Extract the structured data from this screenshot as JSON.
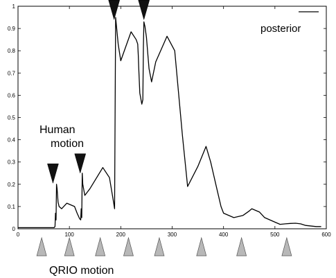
{
  "chart_data": {
    "type": "line",
    "title": "",
    "xlabel": "",
    "ylabel": "",
    "xlim": [
      0,
      600
    ],
    "ylim": [
      0,
      1
    ],
    "x_ticks": [
      "0",
      "100",
      "200",
      "300",
      "400",
      "500",
      "600"
    ],
    "y_ticks": [
      "0",
      "0.1",
      "0.2",
      "0.3",
      "0.4",
      "0.5",
      "0.6",
      "0.7",
      "0.8",
      "0.9",
      "1"
    ],
    "grid": false,
    "legend_position": "top-right",
    "series": [
      {
        "name": "posterior",
        "color": "#000000",
        "x": [
          0,
          40,
          70,
          72,
          73,
          74,
          75,
          76,
          78,
          80,
          85,
          95,
          110,
          115,
          120,
          122,
          123,
          124,
          125,
          126,
          130,
          140,
          165,
          178,
          186,
          188,
          190,
          195,
          200,
          220,
          230,
          233,
          234,
          235,
          237,
          241,
          243,
          244,
          245,
          246,
          247,
          250,
          255,
          260,
          268,
          290,
          305,
          320,
          330,
          350,
          366,
          375,
          385,
          395,
          400,
          420,
          438,
          450,
          455,
          470,
          480,
          500,
          510,
          520,
          530,
          540,
          550,
          560,
          580,
          590
        ],
        "y": [
          0.005,
          0.005,
          0.005,
          0.01,
          0.07,
          0.04,
          0.2,
          0.18,
          0.12,
          0.1,
          0.09,
          0.115,
          0.1,
          0.07,
          0.045,
          0.04,
          0.09,
          0.05,
          0.25,
          0.2,
          0.15,
          0.18,
          0.275,
          0.23,
          0.12,
          0.09,
          0.95,
          0.83,
          0.755,
          0.885,
          0.85,
          0.83,
          0.78,
          0.72,
          0.61,
          0.56,
          0.58,
          0.82,
          0.93,
          0.92,
          0.91,
          0.86,
          0.72,
          0.66,
          0.75,
          0.865,
          0.8,
          0.42,
          0.19,
          0.28,
          0.37,
          0.3,
          0.2,
          0.1,
          0.07,
          0.05,
          0.06,
          0.08,
          0.09,
          0.075,
          0.05,
          0.03,
          0.02,
          0.022,
          0.024,
          0.025,
          0.022,
          0.015,
          0.01,
          0.01
        ]
      }
    ],
    "annotations": [
      {
        "text": "Human",
        "kind": "label"
      },
      {
        "text": "motion",
        "kind": "label"
      },
      {
        "text": "QRIO motion",
        "kind": "label"
      }
    ],
    "human_motion_markers_x": [
      68,
      121,
      187,
      245
    ],
    "qrio_motion_markers_x": [
      46,
      100,
      160,
      215,
      275,
      357,
      435,
      523
    ]
  }
}
